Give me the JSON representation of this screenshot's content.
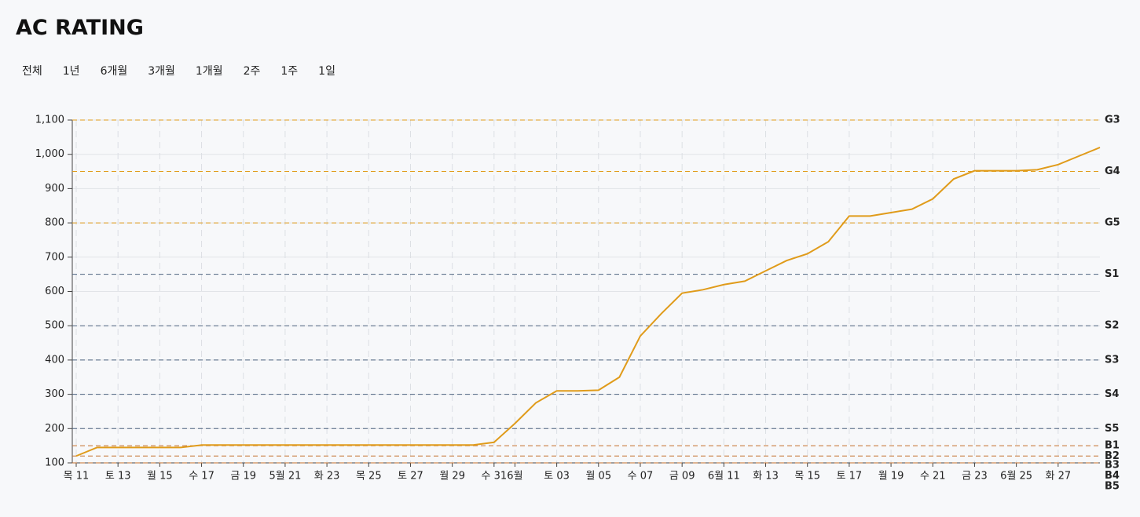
{
  "header": {
    "title": "AC RATING"
  },
  "ranges": [
    "전체",
    "1년",
    "6개월",
    "3개월",
    "1개월",
    "2주",
    "1주",
    "1일"
  ],
  "chart_data": {
    "type": "line",
    "x": [
      "05-11",
      "05-12",
      "05-13",
      "05-14",
      "05-15",
      "05-16",
      "05-17",
      "05-18",
      "05-19",
      "05-20",
      "05-21",
      "05-22",
      "05-23",
      "05-24",
      "05-25",
      "05-26",
      "05-27",
      "05-28",
      "05-29",
      "05-30",
      "05-31",
      "06-01",
      "06-02",
      "06-03",
      "06-04",
      "06-05",
      "06-06",
      "06-07",
      "06-08",
      "06-09",
      "06-10",
      "06-11",
      "06-12",
      "06-13",
      "06-14",
      "06-15",
      "06-16",
      "06-17",
      "06-18",
      "06-19",
      "06-20",
      "06-21",
      "06-22",
      "06-23",
      "06-24",
      "06-25",
      "06-26",
      "06-27",
      "06-28",
      "06-29"
    ],
    "values": [
      120,
      145,
      145,
      145,
      145,
      145,
      152,
      152,
      152,
      152,
      152,
      152,
      152,
      152,
      152,
      152,
      152,
      152,
      152,
      152,
      160,
      215,
      275,
      310,
      310,
      312,
      350,
      470,
      535,
      595,
      605,
      620,
      630,
      660,
      690,
      710,
      745,
      820,
      820,
      830,
      840,
      870,
      928,
      952,
      952,
      952,
      955,
      970,
      995,
      1020
    ],
    "color": "#e09b1a",
    "xlim": [
      "05-11",
      "06-29"
    ],
    "xticks": [
      {
        "value": "05-11",
        "label": "목 11"
      },
      {
        "value": "05-13",
        "label": "토 13"
      },
      {
        "value": "05-15",
        "label": "월 15"
      },
      {
        "value": "05-17",
        "label": "수 17"
      },
      {
        "value": "05-19",
        "label": "금 19"
      },
      {
        "value": "05-21",
        "label": "5월 21"
      },
      {
        "value": "05-23",
        "label": "화 23"
      },
      {
        "value": "05-25",
        "label": "목 25"
      },
      {
        "value": "05-27",
        "label": "토 27"
      },
      {
        "value": "05-29",
        "label": "월 29"
      },
      {
        "value": "05-31",
        "label": "수 31"
      },
      {
        "value": "06-01",
        "label": "6월"
      },
      {
        "value": "06-03",
        "label": "토 03"
      },
      {
        "value": "06-05",
        "label": "월 05"
      },
      {
        "value": "06-07",
        "label": "수 07"
      },
      {
        "value": "06-09",
        "label": "금 09"
      },
      {
        "value": "06-11",
        "label": "6월 11"
      },
      {
        "value": "06-13",
        "label": "화 13"
      },
      {
        "value": "06-15",
        "label": "목 15"
      },
      {
        "value": "06-17",
        "label": "토 17"
      },
      {
        "value": "06-19",
        "label": "월 19"
      },
      {
        "value": "06-21",
        "label": "수 21"
      },
      {
        "value": "06-23",
        "label": "금 23"
      },
      {
        "value": "06-25",
        "label": "6월 25"
      },
      {
        "value": "06-27",
        "label": "화 27"
      }
    ],
    "ylim": [
      100,
      1100
    ],
    "yticks": [
      100,
      200,
      300,
      400,
      500,
      600,
      700,
      800,
      900,
      {
        "value": 1000,
        "label": "1,000"
      },
      {
        "value": 1100,
        "label": "1,100"
      }
    ],
    "grid": true,
    "tiers": [
      {
        "label": "G3",
        "value": 1100,
        "color": "#e09b1a"
      },
      {
        "label": "G4",
        "value": 950,
        "color": "#e09b1a"
      },
      {
        "label": "G5",
        "value": 800,
        "color": "#e09b1a"
      },
      {
        "label": "S1",
        "value": 650,
        "color": "#4e6380"
      },
      {
        "label": "S2",
        "value": 500,
        "color": "#4e6380"
      },
      {
        "label": "S3",
        "value": 400,
        "color": "#4e6380"
      },
      {
        "label": "S4",
        "value": 300,
        "color": "#4e6380"
      },
      {
        "label": "S5",
        "value": 200,
        "color": "#4e6380"
      },
      {
        "label": "B1",
        "value": 150,
        "color": "#c4702c"
      },
      {
        "label": "B2",
        "value": 120,
        "color": "#c4702c"
      },
      {
        "label": "B3",
        "value": 100,
        "color": "#c4702c"
      },
      {
        "label": "B4",
        "value": 80,
        "color": "#c4702c"
      },
      {
        "label": "B5",
        "value": 60,
        "color": "#c4702c"
      }
    ]
  }
}
